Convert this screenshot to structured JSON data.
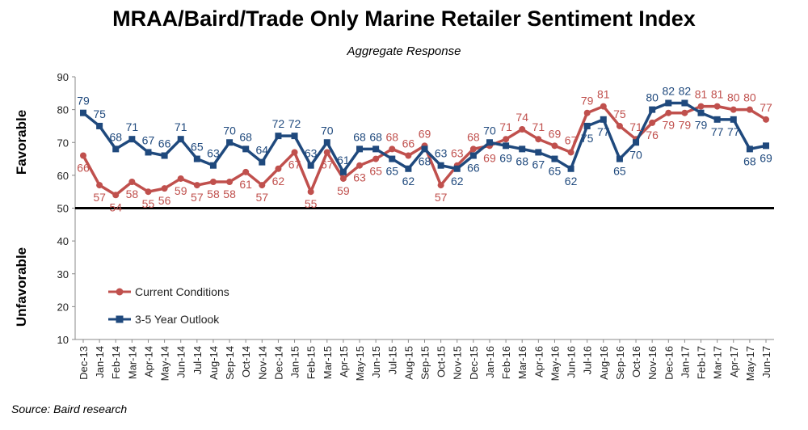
{
  "chart_data": {
    "type": "line",
    "title": "MRAA/Baird/Trade Only Marine Retailer Sentiment Index",
    "subtitle": "Aggregate Response",
    "source": "Source: Baird research",
    "ylabel_upper": "Favorable",
    "ylabel_lower": "Unfavorable",
    "ylim": [
      10,
      90
    ],
    "yticks": [
      10,
      20,
      30,
      40,
      50,
      60,
      70,
      80,
      90
    ],
    "reference_line": 50,
    "grid": false,
    "legend_position": "bottom-left",
    "x": [
      "Dec-13",
      "Jan-14",
      "Feb-14",
      "Mar-14",
      "Apr-14",
      "May-14",
      "Jun-14",
      "Jul-14",
      "Aug-14",
      "Sep-14",
      "Oct-14",
      "Nov-14",
      "Dec-14",
      "Jan-15",
      "Feb-15",
      "Mar-15",
      "Apr-15",
      "May-15",
      "Jun-15",
      "Jul-15",
      "Aug-15",
      "Sep-15",
      "Oct-15",
      "Nov-15",
      "Dec-15",
      "Jan-16",
      "Feb-16",
      "Mar-16",
      "Apr-16",
      "May-16",
      "Jun-16",
      "Jul-16",
      "Aug-16",
      "Sep-16",
      "Oct-16",
      "Nov-16",
      "Dec-16",
      "Jan-17",
      "Feb-17",
      "Mar-17",
      "Apr-17",
      "May-17",
      "Jun-17"
    ],
    "series": [
      {
        "name": "Current Conditions",
        "color": "#c0504d",
        "values": [
          66,
          57,
          54,
          58,
          55,
          56,
          59,
          57,
          58,
          58,
          61,
          57,
          62,
          67,
          55,
          67,
          59,
          63,
          65,
          68,
          66,
          69,
          57,
          63,
          68,
          69,
          71,
          74,
          71,
          69,
          67,
          79,
          81,
          75,
          71,
          76,
          79,
          79,
          81,
          81,
          80,
          80,
          77
        ]
      },
      {
        "name": "3-5 Year Outlook",
        "color": "#1f497d",
        "values": [
          79,
          75,
          68,
          71,
          67,
          66,
          71,
          65,
          63,
          70,
          68,
          64,
          72,
          72,
          63,
          70,
          61,
          68,
          68,
          65,
          62,
          68,
          63,
          62,
          66,
          70,
          69,
          68,
          67,
          65,
          62,
          75,
          77,
          65,
          70,
          80,
          82,
          82,
          79,
          77,
          77,
          68,
          69
        ]
      }
    ]
  }
}
